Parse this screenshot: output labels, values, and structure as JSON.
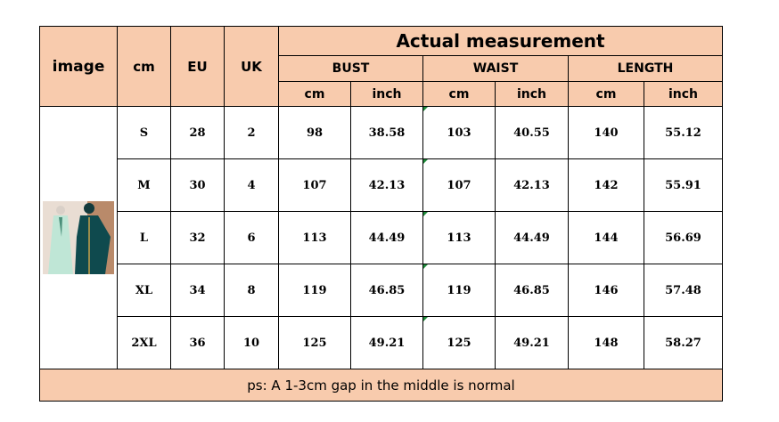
{
  "table": {
    "header": {
      "image": "image",
      "cm": "cm",
      "eu": "EU",
      "uk": "UK",
      "group": "Actual measurement",
      "measures": [
        "BUST",
        "WAIST",
        "LENGTH"
      ],
      "units": [
        "cm",
        "inch",
        "cm",
        "inch",
        "cm",
        "inch"
      ]
    },
    "rows": [
      [
        "S",
        "28",
        "2",
        "98",
        "38.58",
        "103",
        "40.55",
        "140",
        "55.12"
      ],
      [
        "M",
        "30",
        "4",
        "107",
        "42.13",
        "107",
        "42.13",
        "142",
        "55.91"
      ],
      [
        "L",
        "32",
        "6",
        "113",
        "44.49",
        "113",
        "44.49",
        "144",
        "56.69"
      ],
      [
        "XL",
        "34",
        "8",
        "119",
        "46.85",
        "119",
        "46.85",
        "146",
        "57.48"
      ],
      [
        "2XL",
        "36",
        "10",
        "125",
        "49.21",
        "125",
        "49.21",
        "148",
        "58.27"
      ]
    ],
    "footer": "ps: A 1-3cm gap in the middle is normal"
  }
}
